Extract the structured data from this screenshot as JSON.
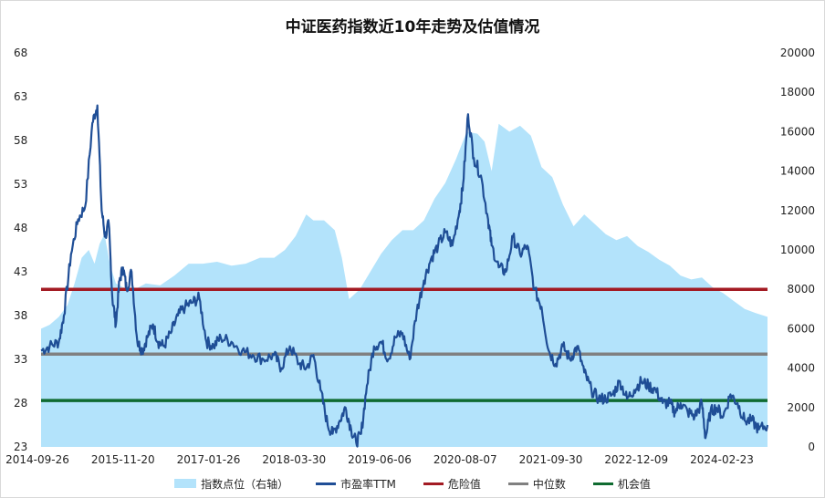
{
  "chart_data": {
    "type": "line",
    "title": "中证医药指数近10年走势及估值情况",
    "x_tick_labels": [
      "2014-09-26",
      "2015-11-20",
      "2017-01-26",
      "2018-03-30",
      "2019-06-06",
      "2020-08-07",
      "2021-09-30",
      "2022-12-09",
      "2024-02-23"
    ],
    "y_left": {
      "ticks": [
        23,
        28,
        33,
        38,
        43,
        48,
        53,
        58,
        63,
        68
      ],
      "range": [
        23,
        68
      ]
    },
    "y_right": {
      "ticks": [
        0,
        2000,
        4000,
        6000,
        8000,
        10000,
        12000,
        14000,
        16000,
        18000,
        20000
      ],
      "range": [
        0,
        20000
      ]
    },
    "x_range": [
      2014.73,
      2024.92
    ],
    "legend_position": "bottom",
    "grid": false,
    "reference_lines": [
      {
        "name": "危险值",
        "value": 41.0,
        "color": "#a31b23"
      },
      {
        "name": "中位数",
        "value": 33.6,
        "color": "#808080"
      },
      {
        "name": "机会值",
        "value": 28.3,
        "color": "#0f6b30"
      }
    ],
    "series": [
      {
        "name": "指数点位（右轴）",
        "axis": "right",
        "kind": "area",
        "color": "#b3e3fb",
        "x": [
          2014.73,
          2014.85,
          2014.98,
          2015.1,
          2015.2,
          2015.3,
          2015.4,
          2015.48,
          2015.55,
          2015.62,
          2015.7,
          2015.78,
          2015.88,
          2016.0,
          2016.1,
          2016.2,
          2016.4,
          2016.6,
          2016.8,
          2017.0,
          2017.2,
          2017.4,
          2017.6,
          2017.8,
          2018.0,
          2018.15,
          2018.3,
          2018.45,
          2018.55,
          2018.7,
          2018.85,
          2018.95,
          2019.05,
          2019.2,
          2019.35,
          2019.5,
          2019.65,
          2019.8,
          2019.95,
          2020.1,
          2020.25,
          2020.4,
          2020.55,
          2020.7,
          2020.85,
          2020.95,
          2021.05,
          2021.15,
          2021.3,
          2021.45,
          2021.6,
          2021.75,
          2021.9,
          2022.05,
          2022.2,
          2022.35,
          2022.5,
          2022.65,
          2022.8,
          2022.95,
          2023.1,
          2023.25,
          2023.4,
          2023.55,
          2023.7,
          2023.85,
          2024.0,
          2024.15,
          2024.3,
          2024.45,
          2024.6,
          2024.75,
          2024.92
        ],
        "values": [
          6000,
          6200,
          6600,
          7200,
          8300,
          9600,
          10000,
          9300,
          10300,
          10800,
          9200,
          8300,
          8100,
          8000,
          8100,
          8300,
          8200,
          8700,
          9300,
          9300,
          9400,
          9200,
          9300,
          9600,
          9600,
          10000,
          10700,
          11800,
          11500,
          11500,
          11000,
          9600,
          7500,
          8000,
          8900,
          9800,
          10500,
          11000,
          11000,
          11500,
          12600,
          13400,
          14600,
          16000,
          15900,
          15500,
          14000,
          16400,
          16000,
          16300,
          15800,
          14200,
          13700,
          12300,
          11200,
          11800,
          11300,
          10800,
          10500,
          10700,
          10200,
          9900,
          9500,
          9200,
          8700,
          8500,
          8600,
          8100,
          7800,
          7400,
          7000,
          6800,
          6600
        ]
      },
      {
        "name": "市盈率TTM",
        "axis": "left",
        "kind": "line",
        "color": "#1f4e96",
        "x": [
          2014.73,
          2014.85,
          2014.98,
          2015.05,
          2015.15,
          2015.25,
          2015.35,
          2015.45,
          2015.52,
          2015.58,
          2015.63,
          2015.68,
          2015.73,
          2015.78,
          2015.83,
          2015.88,
          2015.93,
          2016.0,
          2016.08,
          2016.15,
          2016.22,
          2016.3,
          2016.37,
          2016.45,
          2016.55,
          2016.65,
          2016.75,
          2016.85,
          2016.95,
          2017.05,
          2017.15,
          2017.25,
          2017.4,
          2017.55,
          2017.7,
          2017.85,
          2018.0,
          2018.1,
          2018.22,
          2018.35,
          2018.45,
          2018.55,
          2018.65,
          2018.75,
          2018.82,
          2018.92,
          2019.0,
          2019.08,
          2019.15,
          2019.22,
          2019.3,
          2019.4,
          2019.5,
          2019.6,
          2019.7,
          2019.8,
          2019.9,
          2020.0,
          2020.1,
          2020.2,
          2020.3,
          2020.4,
          2020.5,
          2020.6,
          2020.65,
          2020.72,
          2020.8,
          2020.9,
          2021.0,
          2021.05,
          2021.15,
          2021.25,
          2021.35,
          2021.45,
          2021.55,
          2021.65,
          2021.75,
          2021.85,
          2021.95,
          2022.05,
          2022.15,
          2022.25,
          2022.35,
          2022.45,
          2022.55,
          2022.65,
          2022.75,
          2022.85,
          2022.95,
          2023.05,
          2023.15,
          2023.25,
          2023.35,
          2023.45,
          2023.55,
          2023.62,
          2023.7,
          2023.8,
          2023.9,
          2024.0,
          2024.05,
          2024.12,
          2024.2,
          2024.3,
          2024.4,
          2024.5,
          2024.6,
          2024.7,
          2024.8,
          2024.92
        ],
        "values": [
          34.0,
          34.5,
          35.0,
          38.0,
          45.0,
          49.0,
          50.5,
          60.0,
          62.0,
          50.0,
          47.0,
          48.5,
          40.0,
          37.0,
          42.0,
          43.5,
          41.0,
          43.0,
          35.0,
          34.0,
          35.5,
          37.0,
          35.0,
          34.5,
          36.0,
          38.0,
          39.0,
          39.5,
          40.0,
          35.0,
          34.5,
          35.5,
          35.0,
          34.0,
          33.5,
          33.0,
          33.5,
          32.0,
          34.5,
          32.5,
          32.0,
          33.5,
          29.5,
          25.5,
          24.5,
          26.0,
          27.5,
          25.0,
          23.5,
          24.5,
          30.0,
          34.5,
          35.0,
          33.0,
          35.5,
          36.0,
          33.0,
          38.5,
          42.0,
          44.5,
          46.0,
          47.5,
          46.0,
          50.0,
          53.0,
          61.0,
          56.0,
          54.0,
          49.0,
          46.0,
          43.5,
          43.0,
          47.0,
          45.0,
          46.0,
          41.0,
          39.0,
          34.0,
          32.5,
          34.5,
          33.0,
          34.5,
          31.5,
          29.5,
          28.5,
          28.5,
          29.0,
          30.5,
          28.5,
          29.5,
          30.5,
          30.0,
          29.5,
          28.0,
          28.0,
          27.0,
          28.0,
          27.0,
          26.5,
          28.0,
          24.0,
          27.0,
          27.5,
          26.5,
          29.0,
          28.0,
          26.0,
          26.0,
          25.0,
          25.5
        ]
      }
    ]
  }
}
